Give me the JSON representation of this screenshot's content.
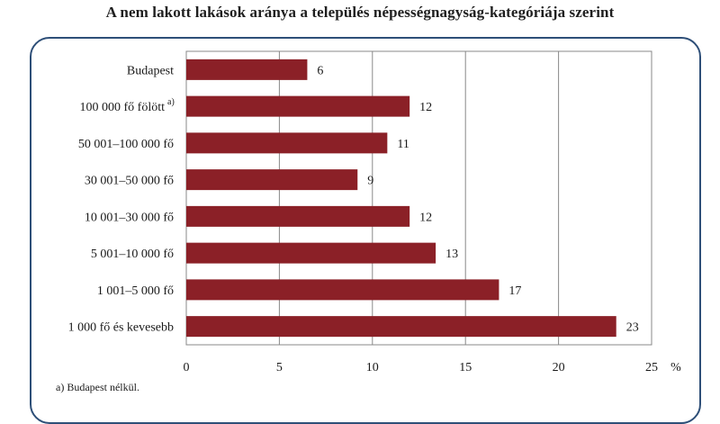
{
  "chart_data": {
    "type": "bar",
    "orientation": "horizontal",
    "title": "A nem lakott lakások aránya a település népességnagyság-kategóriája szerint",
    "categories": [
      "Budapest",
      "100 000 fő fölött",
      "50 001–100 000 fő",
      "30 001–50 000 fő",
      "10 001–30 000 fő",
      "5 001–10 000 fő",
      "1 001–5 000 fő",
      "1 000 fő és kevesebb"
    ],
    "category_superscripts": [
      "",
      "a)",
      "",
      "",
      "",
      "",
      "",
      ""
    ],
    "values": [
      6,
      12,
      11,
      9,
      12,
      13,
      17,
      23
    ],
    "bar_values": [
      6.5,
      12,
      10.8,
      9.2,
      12,
      13.4,
      16.8,
      23.1
    ],
    "x_ticks": [
      0,
      5,
      10,
      15,
      20,
      25
    ],
    "x_unit": "%",
    "xlim": [
      0,
      25
    ],
    "grid": true,
    "bar_color": "#8b2027",
    "frame_color": "#2e4f78",
    "footnote": "a) Budapest nélkül."
  }
}
